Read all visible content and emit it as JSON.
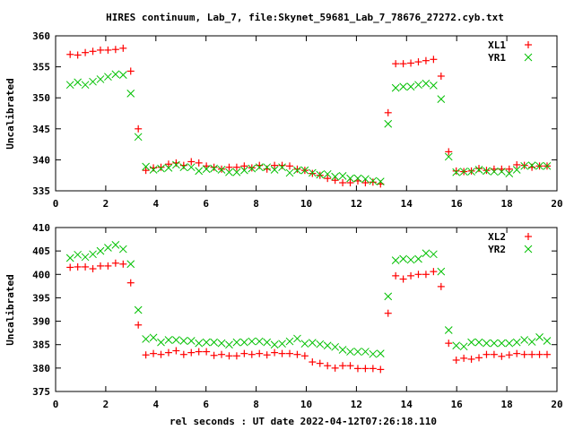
{
  "chart_data": [
    {
      "type": "scatter",
      "title": "HIRES continuum, Lab_7, file:Skynet_59681_Lab_7_78676_27272.cyb.txt",
      "xlabel": "rel seconds : UT date 2022-04-12T07:26:18.110",
      "ylabel": "Uncalibrated",
      "xlim": [
        0,
        20
      ],
      "ylim": [
        335,
        360
      ],
      "xticks": [
        "0",
        "2",
        "4",
        "6",
        "8",
        "10",
        "12",
        "14",
        "16",
        "18",
        "20"
      ],
      "yticks": [
        "335",
        "340",
        "345",
        "350",
        "355",
        "360"
      ],
      "legend": "top-right",
      "series": [
        {
          "name": "XL1",
          "color": "#ff0000",
          "marker": "plus",
          "values": [
            357.0,
            356.9,
            357.3,
            357.5,
            357.7,
            357.7,
            357.8,
            358.0,
            354.3,
            345.0,
            338.3,
            338.7,
            338.8,
            339.3,
            339.5,
            339.1,
            339.7,
            339.5,
            339.0,
            338.8,
            338.5,
            338.8,
            338.8,
            339.0,
            338.7,
            339.1,
            338.5,
            339.1,
            339.1,
            339.0,
            338.5,
            338.3,
            337.8,
            337.5,
            337.0,
            336.7,
            336.3,
            336.3,
            336.6,
            336.3,
            336.4,
            336.1,
            347.6,
            355.5,
            355.5,
            355.6,
            355.8,
            356.0,
            356.2,
            353.5,
            341.3,
            338.2,
            338.1,
            338.2,
            338.6,
            338.3,
            338.5,
            338.5,
            338.5,
            339.2,
            339.1,
            338.8,
            339.0,
            339.0
          ]
        },
        {
          "name": "YR1",
          "color": "#00c000",
          "marker": "cross",
          "values": [
            352.1,
            352.5,
            352.1,
            352.6,
            353.0,
            353.4,
            353.8,
            353.7,
            350.7,
            343.7,
            338.9,
            338.4,
            338.6,
            338.7,
            339.2,
            338.8,
            338.8,
            338.2,
            338.5,
            338.6,
            338.4,
            338.0,
            338.0,
            338.3,
            338.6,
            338.8,
            338.8,
            338.4,
            338.8,
            337.9,
            338.3,
            338.3,
            337.9,
            337.6,
            337.7,
            337.3,
            337.4,
            337.0,
            337.0,
            336.9,
            336.6,
            336.5,
            345.8,
            351.6,
            351.8,
            351.8,
            352.1,
            352.3,
            352.0,
            349.8,
            340.5,
            338.0,
            338.1,
            338.1,
            338.4,
            338.2,
            338.1,
            338.1,
            337.8,
            338.4,
            339.0,
            339.1,
            339.0,
            339.0
          ]
        }
      ]
    },
    {
      "type": "scatter",
      "xlabel": "rel seconds : UT date 2022-04-12T07:26:18.110",
      "ylabel": "Uncalibrated",
      "xlim": [
        0,
        20
      ],
      "ylim": [
        375,
        410
      ],
      "xticks": [
        "0",
        "2",
        "4",
        "6",
        "8",
        "10",
        "12",
        "14",
        "16",
        "18",
        "20"
      ],
      "yticks": [
        "375",
        "380",
        "385",
        "390",
        "395",
        "400",
        "405",
        "410"
      ],
      "legend": "top-right",
      "series": [
        {
          "name": "XL2",
          "color": "#ff0000",
          "marker": "plus",
          "values": [
            401.5,
            401.6,
            401.6,
            401.2,
            401.8,
            401.8,
            402.4,
            402.2,
            398.2,
            389.2,
            382.8,
            383.1,
            382.9,
            383.3,
            383.7,
            382.9,
            383.3,
            383.5,
            383.5,
            382.7,
            382.9,
            382.6,
            382.6,
            383.1,
            382.9,
            383.1,
            382.8,
            383.3,
            383.1,
            383.1,
            382.9,
            382.6,
            381.3,
            381.0,
            380.5,
            380.0,
            380.5,
            380.5,
            379.9,
            379.9,
            379.9,
            379.7,
            391.7,
            399.7,
            399.0,
            399.7,
            400.0,
            400.0,
            400.6,
            397.4,
            385.3,
            381.7,
            382.1,
            381.9,
            382.2,
            382.9,
            382.9,
            382.5,
            382.8,
            383.1,
            382.9,
            382.9,
            382.9,
            382.9
          ]
        },
        {
          "name": "YR2",
          "color": "#00c000",
          "marker": "cross",
          "values": [
            403.5,
            404.2,
            403.7,
            404.3,
            405.0,
            405.7,
            406.3,
            405.4,
            402.2,
            392.4,
            386.2,
            386.5,
            385.5,
            386.0,
            386.0,
            385.8,
            385.8,
            385.3,
            385.5,
            385.5,
            385.3,
            385.0,
            385.5,
            385.5,
            385.7,
            385.7,
            385.5,
            385.0,
            385.2,
            385.7,
            386.3,
            385.2,
            385.4,
            385.1,
            384.8,
            384.5,
            383.9,
            383.5,
            383.5,
            383.5,
            383.0,
            383.1,
            395.3,
            403.0,
            403.3,
            403.1,
            403.3,
            404.5,
            404.3,
            400.6,
            388.1,
            384.8,
            384.6,
            385.5,
            385.5,
            385.3,
            385.3,
            385.3,
            385.3,
            385.5,
            386.0,
            385.6,
            386.6,
            385.8
          ]
        }
      ]
    }
  ],
  "x_start": 0.58,
  "x_step": 0.302
}
